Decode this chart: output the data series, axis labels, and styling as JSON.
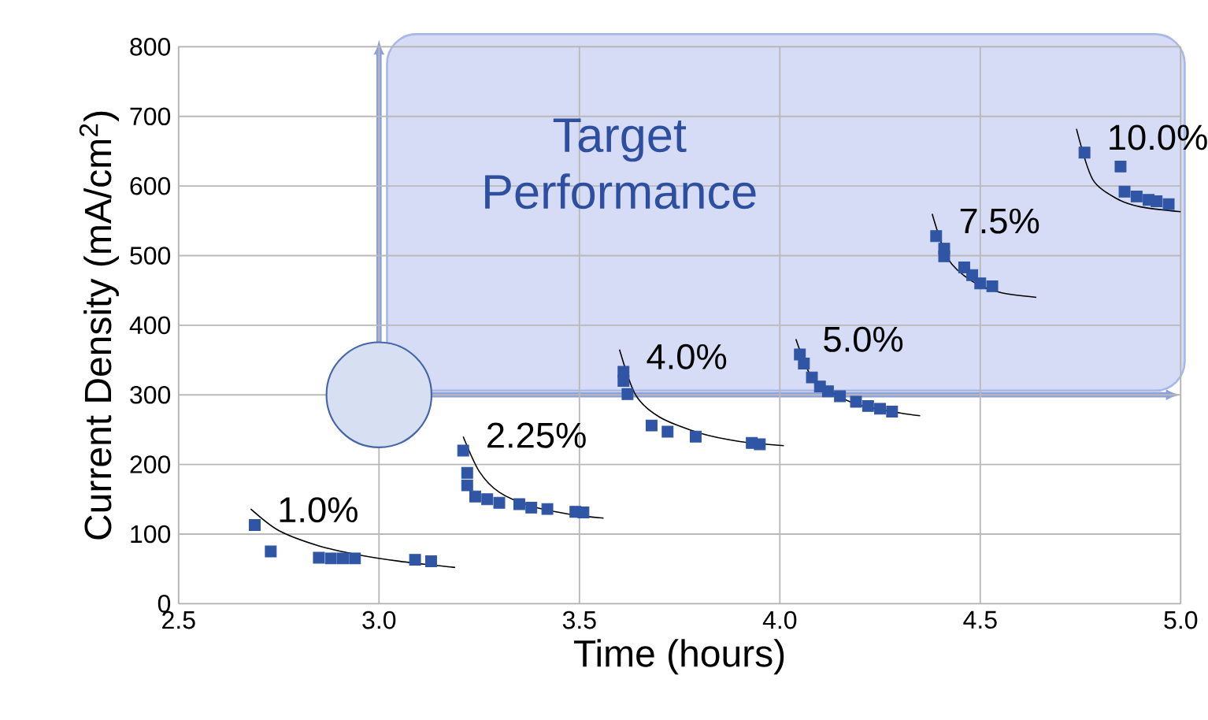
{
  "chart_data": {
    "type": "scatter",
    "xlabel": "Time (hours)",
    "ylabel": "Current Density (mA/cm$^{2}$)",
    "xlim": [
      2.5,
      5.0
    ],
    "ylim": [
      0,
      800
    ],
    "xticks": [
      2.5,
      {
        "value": 3.0,
        "label": "3.0"
      },
      3.5,
      {
        "value": 4.0,
        "label": "4.0"
      },
      4.5,
      {
        "value": 5.0,
        "label": "5.0"
      }
    ],
    "yticks": [
      0,
      100,
      200,
      300,
      400,
      500,
      600,
      700,
      800
    ],
    "grid": true,
    "marker": "square",
    "annotations": [
      "Target Performance"
    ],
    "series": [
      {
        "type": "scatter",
        "marker": "circle",
        "color": "#d6e0f2",
        "x": [
          3.0
        ],
        "values": [
          300
        ]
      },
      {
        "name": "1.0%",
        "color": "#2f55a4",
        "x": [
          2.69,
          2.73,
          2.85,
          2.88,
          2.91,
          2.94,
          3.09,
          3.13
        ],
        "values": [
          113,
          75,
          66,
          65,
          65,
          65,
          63,
          61
        ]
      },
      {
        "type": "line",
        "marker": "none",
        "color": "#000000",
        "x": [
          2.68,
          2.75,
          2.85,
          2.95,
          3.05,
          3.19
        ],
        "values": [
          136,
          105,
          83,
          70,
          61,
          52
        ]
      },
      {
        "name": "2.25%",
        "color": "#2f55a4",
        "x": [
          3.21,
          3.22,
          3.22,
          3.24,
          3.27,
          3.3,
          3.35,
          3.38,
          3.42,
          3.49,
          3.51
        ],
        "values": [
          220,
          188,
          170,
          154,
          150,
          145,
          143,
          138,
          136,
          132,
          131
        ]
      },
      {
        "type": "line",
        "marker": "none",
        "color": "#000000",
        "x": [
          3.21,
          3.25,
          3.3,
          3.38,
          3.48,
          3.56
        ],
        "values": [
          240,
          190,
          160,
          140,
          128,
          123
        ]
      },
      {
        "name": "4.0%",
        "color": "#2f55a4",
        "x": [
          3.61,
          3.61,
          3.62,
          3.68,
          3.72,
          3.79,
          3.93,
          3.95
        ],
        "values": [
          333,
          320,
          301,
          256,
          247,
          240,
          231,
          229
        ]
      },
      {
        "type": "line",
        "marker": "none",
        "color": "#000000",
        "x": [
          3.6,
          3.64,
          3.7,
          3.8,
          3.9,
          4.01
        ],
        "values": [
          365,
          300,
          268,
          245,
          233,
          227
        ]
      },
      {
        "name": "5.0%",
        "color": "#2f55a4",
        "x": [
          4.05,
          4.06,
          4.08,
          4.1,
          4.12,
          4.15,
          4.19,
          4.22,
          4.25,
          4.28
        ],
        "values": [
          358,
          345,
          325,
          312,
          305,
          298,
          290,
          284,
          280,
          276
        ]
      },
      {
        "type": "line",
        "marker": "none",
        "color": "#000000",
        "x": [
          4.04,
          4.08,
          4.14,
          4.2,
          4.3,
          4.35
        ],
        "values": [
          380,
          325,
          300,
          285,
          274,
          270
        ]
      },
      {
        "name": "7.5%",
        "color": "#2f55a4",
        "x": [
          4.39,
          4.41,
          4.41,
          4.46,
          4.48,
          4.5,
          4.53
        ],
        "values": [
          528,
          510,
          499,
          483,
          472,
          460,
          456
        ]
      },
      {
        "type": "line",
        "marker": "none",
        "color": "#000000",
        "x": [
          4.38,
          4.42,
          4.48,
          4.55,
          4.64
        ],
        "values": [
          560,
          495,
          463,
          447,
          440
        ]
      },
      {
        "name": "10.0%",
        "color": "#2f55a4",
        "x": [
          4.76,
          4.85,
          4.86,
          4.89,
          4.92,
          4.94,
          4.97
        ],
        "values": [
          648,
          628,
          592,
          585,
          580,
          578,
          574
        ]
      },
      {
        "type": "line",
        "marker": "none",
        "color": "#000000",
        "x": [
          4.74,
          4.78,
          4.84,
          4.9,
          5.0
        ],
        "values": [
          682,
          610,
          582,
          570,
          563
        ]
      }
    ]
  }
}
